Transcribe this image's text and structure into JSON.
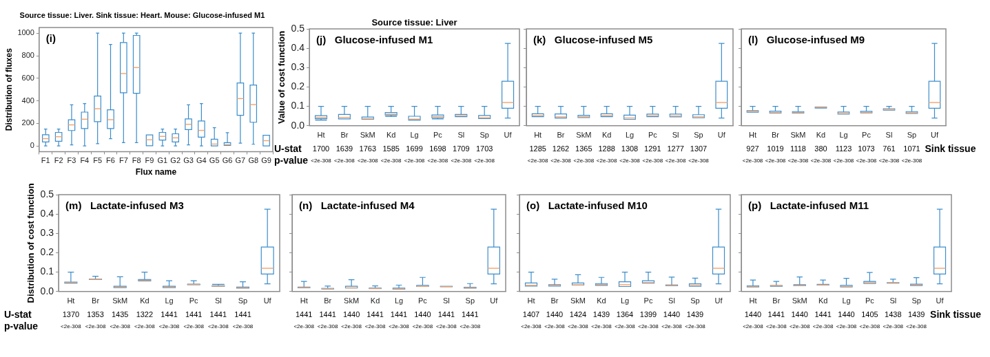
{
  "chart_data": [
    {
      "type": "box",
      "title": "Source tissue: Liver. Sink tissue: Heart. Mouse: Glucose-infused M1",
      "subtitle": "(i)",
      "xlabel": "Flux name",
      "ylabel": "Distribution of fluxes",
      "categories": [
        "F1",
        "F2",
        "F3",
        "F4",
        "F5",
        "F6",
        "F7",
        "F8",
        "F9",
        "G1",
        "G2",
        "G3",
        "G4",
        "G5",
        "G6",
        "G7",
        "G8",
        "G9"
      ],
      "ylim": [
        -50,
        1050
      ],
      "yticks": [
        0,
        200,
        400,
        600,
        800,
        1000
      ],
      "series": [
        {
          "color": "#3c8dcb",
          "boxes": [
            {
              "low": 0,
              "q1": 35,
              "median": 65,
              "q3": 100,
              "high": 150
            },
            {
              "low": 0,
              "q1": 42,
              "median": 82,
              "q3": 120,
              "high": 150
            },
            {
              "low": 10,
              "q1": 137,
              "median": 187,
              "q3": 232,
              "high": 365
            },
            {
              "low": 0,
              "q1": 155,
              "median": 237,
              "q3": 300,
              "high": 375
            },
            {
              "low": 20,
              "q1": 215,
              "median": 330,
              "q3": 443,
              "high": 1000
            },
            {
              "low": 65,
              "q1": 155,
              "median": 233,
              "q3": 320,
              "high": 900
            },
            {
              "low": 30,
              "q1": 472,
              "median": 642,
              "q3": 917,
              "high": 1000
            },
            {
              "low": 30,
              "q1": 467,
              "median": 695,
              "q3": 980,
              "high": 1000
            },
            {
              "low": 0,
              "q1": 2,
              "median": 55,
              "q3": 98,
              "high": 100
            },
            {
              "low": 0,
              "q1": 52,
              "median": 85,
              "q3": 120,
              "high": 150
            },
            {
              "low": 0,
              "q1": 35,
              "median": 72,
              "q3": 108,
              "high": 150
            },
            {
              "low": 10,
              "q1": 145,
              "median": 192,
              "q3": 240,
              "high": 365
            },
            {
              "low": 0,
              "q1": 78,
              "median": 138,
              "q3": 222,
              "high": 375
            },
            {
              "low": 0,
              "q1": 0,
              "median": 17,
              "q3": 60,
              "high": 162
            },
            {
              "low": 0,
              "q1": 5,
              "median": 12,
              "q3": 30,
              "high": 118
            },
            {
              "low": 25,
              "q1": 272,
              "median": 420,
              "q3": 558,
              "high": 1000
            },
            {
              "low": 15,
              "q1": 210,
              "median": 367,
              "q3": 540,
              "high": 1000
            },
            {
              "low": 0,
              "q1": 0,
              "median": 47,
              "q3": 95,
              "high": 97
            }
          ]
        }
      ]
    },
    {
      "type": "box",
      "title": "Source tissue: Liver",
      "subtitle": "(j)   Glucose-infused M1",
      "ylabel": "Value of cost function",
      "categories": [
        "Ht",
        "Br",
        "SkM",
        "Kd",
        "Lg",
        "Pc",
        "Sl",
        "Sp",
        "Uf"
      ],
      "ylim": [
        0,
        0.5
      ],
      "yticks": [
        {
          "value": 0,
          "label": "0.0"
        },
        0.1,
        0.2,
        0.3,
        0.4,
        0.5
      ],
      "series": [
        {
          "color": "#3c8dcb",
          "boxes": [
            {
              "low": 0.029,
              "q1": 0.036,
              "median": 0.042,
              "q3": 0.052,
              "high": 0.1
            },
            {
              "low": 0.033,
              "q1": 0.035,
              "median": 0.043,
              "q3": 0.058,
              "high": 0.1
            },
            {
              "low": 0.03,
              "q1": 0.033,
              "median": 0.036,
              "q3": 0.045,
              "high": 0.1
            },
            {
              "low": 0.048,
              "q1": 0.055,
              "median": 0.059,
              "q3": 0.068,
              "high": 0.1
            },
            {
              "low": 0.024,
              "q1": 0.029,
              "median": 0.034,
              "q3": 0.049,
              "high": 0.1
            },
            {
              "low": 0.035,
              "q1": 0.041,
              "median": 0.047,
              "q3": 0.056,
              "high": 0.1
            },
            {
              "low": 0.045,
              "q1": 0.047,
              "median": 0.051,
              "q3": 0.058,
              "high": 0.1
            },
            {
              "low": 0.033,
              "q1": 0.037,
              "median": 0.041,
              "q3": 0.053,
              "high": 0.1
            },
            {
              "low": 0.04,
              "q1": 0.09,
              "median": 0.12,
              "q3": 0.23,
              "high": 0.425
            }
          ]
        }
      ],
      "annotations": [
        "U-stat",
        "p-value",
        "1700",
        "1639",
        "1763",
        "1585",
        "1699",
        "1698",
        "1709",
        "1703",
        "<2e-308",
        "<2e-308",
        "<2e-308",
        "<2e-308",
        "<2e-308",
        "<2e-308",
        "<2e-308",
        "<2e-308"
      ]
    },
    {
      "type": "box",
      "subtitle": "(k)   Glucose-infused M5",
      "categories": [
        "Ht",
        "Br",
        "SkM",
        "Kd",
        "Lg",
        "Pc",
        "Sl",
        "Sp",
        "Uf"
      ],
      "ylim": [
        0,
        0.5
      ],
      "yticks": [
        0,
        0.1,
        0.2,
        0.3,
        0.4,
        0.5
      ],
      "tick_labels": "x",
      "series": [
        {
          "color": "#3c8dcb",
          "boxes": [
            {
              "low": 0.043,
              "q1": 0.047,
              "median": 0.052,
              "q3": 0.062,
              "high": 0.1
            },
            {
              "low": 0.037,
              "q1": 0.04,
              "median": 0.046,
              "q3": 0.061,
              "high": 0.1
            },
            {
              "low": 0.04,
              "q1": 0.042,
              "median": 0.046,
              "q3": 0.054,
              "high": 0.1
            },
            {
              "low": 0.042,
              "q1": 0.047,
              "median": 0.052,
              "q3": 0.062,
              "high": 0.1
            },
            {
              "low": 0.03,
              "q1": 0.033,
              "median": 0.04,
              "q3": 0.055,
              "high": 0.1
            },
            {
              "low": 0.045,
              "q1": 0.047,
              "median": 0.051,
              "q3": 0.06,
              "high": 0.1
            },
            {
              "low": 0.043,
              "q1": 0.046,
              "median": 0.05,
              "q3": 0.06,
              "high": 0.1
            },
            {
              "low": 0.038,
              "q1": 0.041,
              "median": 0.046,
              "q3": 0.057,
              "high": 0.1
            },
            {
              "low": 0.04,
              "q1": 0.09,
              "median": 0.12,
              "q3": 0.23,
              "high": 0.425
            }
          ]
        }
      ],
      "annotations": [
        "1285",
        "1262",
        "1365",
        "1288",
        "1308",
        "1291",
        "1277",
        "1307",
        "<2e-308",
        "<2e-308",
        "<2e-308",
        "<2e-308",
        "<2e-308",
        "<2e-308",
        "<2e-308",
        "<2e-308"
      ]
    },
    {
      "type": "box",
      "subtitle": "(l)   Glucose-infused M9",
      "categories": [
        "Ht",
        "Br",
        "SkM",
        "Kd",
        "Lg",
        "Pc",
        "Sl",
        "Sp",
        "Uf"
      ],
      "ylim": [
        0,
        0.5
      ],
      "yticks": [
        0,
        0.1,
        0.2,
        0.3,
        0.4,
        0.5
      ],
      "tick_labels": "x",
      "series": [
        {
          "color": "#3c8dcb",
          "boxes": [
            {
              "low": 0.068,
              "q1": 0.07,
              "median": 0.074,
              "q3": 0.078,
              "high": 0.1
            },
            {
              "low": 0.062,
              "q1": 0.065,
              "median": 0.068,
              "q3": 0.075,
              "high": 0.1
            },
            {
              "low": 0.062,
              "q1": 0.065,
              "median": 0.068,
              "q3": 0.073,
              "high": 0.1
            },
            {
              "low": 0.088,
              "q1": 0.091,
              "median": 0.094,
              "q3": 0.097,
              "high": 0.1
            },
            {
              "low": 0.057,
              "q1": 0.06,
              "median": 0.063,
              "q3": 0.071,
              "high": 0.1
            },
            {
              "low": 0.063,
              "q1": 0.066,
              "median": 0.068,
              "q3": 0.074,
              "high": 0.1
            },
            {
              "low": 0.08,
              "q1": 0.08,
              "median": 0.083,
              "q3": 0.088,
              "high": 0.1
            },
            {
              "low": 0.061,
              "q1": 0.064,
              "median": 0.067,
              "q3": 0.073,
              "high": 0.1
            },
            {
              "low": 0.04,
              "q1": 0.09,
              "median": 0.12,
              "q3": 0.23,
              "high": 0.425
            }
          ]
        }
      ],
      "annotations": [
        "Sink tissue",
        "927",
        "1019",
        "1118",
        "380",
        "1123",
        "1073",
        "761",
        "1071",
        "<2e-308",
        "<2e-308",
        "<2e-308",
        "<2e-308",
        "<2e-308",
        "<2e-308",
        "<2e-308",
        "<2e-308"
      ]
    },
    {
      "type": "box",
      "subtitle": "(m)   Lactate-infused M3",
      "ylabel": "Distribution of cost function",
      "categories": [
        "Ht",
        "Br",
        "SkM",
        "Kd",
        "Lg",
        "Pc",
        "Sl",
        "Sp",
        "Uf"
      ],
      "ylim": [
        0,
        0.5
      ],
      "yticks": [
        {
          "value": 0,
          "label": "0.0"
        },
        0.1,
        0.2,
        0.3,
        0.4,
        0.5
      ],
      "series": [
        {
          "color": "#3c8dcb",
          "boxes": [
            {
              "low": 0.04,
              "q1": 0.043,
              "median": 0.047,
              "q3": 0.049,
              "high": 0.1
            },
            {
              "low": 0.062,
              "q1": 0.062,
              "median": 0.063,
              "q3": 0.064,
              "high": 0.079
            },
            {
              "low": 0.018,
              "q1": 0.02,
              "median": 0.022,
              "q3": 0.027,
              "high": 0.076
            },
            {
              "low": 0.05,
              "q1": 0.055,
              "median": 0.058,
              "q3": 0.062,
              "high": 0.1
            },
            {
              "low": 0.018,
              "q1": 0.02,
              "median": 0.022,
              "q3": 0.027,
              "high": 0.056
            },
            {
              "low": 0.033,
              "q1": 0.035,
              "median": 0.037,
              "q3": 0.038,
              "high": 0.056
            },
            {
              "low": 0.026,
              "q1": 0.027,
              "median": 0.028,
              "q3": 0.03,
              "high": 0.037
            },
            {
              "low": 0.015,
              "q1": 0.017,
              "median": 0.019,
              "q3": 0.023,
              "high": 0.05
            },
            {
              "low": 0.04,
              "q1": 0.09,
              "median": 0.12,
              "q3": 0.23,
              "high": 0.425
            }
          ]
        }
      ],
      "annotations": [
        "U-stat",
        "p-value",
        "1370",
        "1353",
        "1435",
        "1322",
        "1441",
        "1441",
        "1441",
        "1441",
        "<2e-308",
        "<2e-308",
        "<2e-308",
        "<2e-308",
        "<2e-308",
        "<2e-308",
        "<2e-308",
        "<2e-308"
      ]
    },
    {
      "type": "box",
      "subtitle": "(n)   Lactate-infused M4",
      "categories": [
        "Ht",
        "Br",
        "SkM",
        "Kd",
        "Lg",
        "Pc",
        "Sl",
        "Sp",
        "Uf"
      ],
      "ylim": [
        0,
        0.5
      ],
      "yticks": [
        0,
        0.1,
        0.2,
        0.3,
        0.4,
        0.5
      ],
      "tick_labels": "x",
      "series": [
        {
          "color": "#3c8dcb",
          "boxes": [
            {
              "low": 0.018,
              "q1": 0.019,
              "median": 0.021,
              "q3": 0.023,
              "high": 0.052
            },
            {
              "low": 0.012,
              "q1": 0.013,
              "median": 0.015,
              "q3": 0.016,
              "high": 0.028
            },
            {
              "low": 0.017,
              "q1": 0.018,
              "median": 0.019,
              "q3": 0.027,
              "high": 0.061
            },
            {
              "low": 0.014,
              "q1": 0.015,
              "median": 0.016,
              "q3": 0.018,
              "high": 0.029
            },
            {
              "low": 0.011,
              "q1": 0.012,
              "median": 0.014,
              "q3": 0.018,
              "high": 0.033
            },
            {
              "low": 0.025,
              "q1": 0.026,
              "median": 0.027,
              "q3": 0.032,
              "high": 0.073
            },
            {
              "low": 0.024,
              "q1": 0.025,
              "median": 0.025,
              "q3": 0.027,
              "high": 0.03
            },
            {
              "low": 0.015,
              "q1": 0.017,
              "median": 0.019,
              "q3": 0.022,
              "high": 0.041
            },
            {
              "low": 0.04,
              "q1": 0.09,
              "median": 0.12,
              "q3": 0.23,
              "high": 0.425
            }
          ]
        }
      ],
      "annotations": [
        "1441",
        "1441",
        "1440",
        "1441",
        "1441",
        "1440",
        "1441",
        "1441",
        "<2e-308",
        "<2e-308",
        "<2e-308",
        "<2e-308",
        "<2e-308",
        "<2e-308",
        "<2e-308",
        "<2e-308"
      ]
    },
    {
      "type": "box",
      "subtitle": "(o)   Lactate-infused M10",
      "categories": [
        "Ht",
        "Br",
        "SkM",
        "Kd",
        "Lg",
        "Pc",
        "Sl",
        "Sp",
        "Uf"
      ],
      "ylim": [
        0,
        0.5
      ],
      "yticks": [
        0,
        0.1,
        0.2,
        0.3,
        0.4,
        0.5
      ],
      "tick_labels": "x",
      "series": [
        {
          "color": "#3c8dcb",
          "boxes": [
            {
              "low": 0.026,
              "q1": 0.028,
              "median": 0.032,
              "q3": 0.044,
              "high": 0.1
            },
            {
              "low": 0.027,
              "q1": 0.028,
              "median": 0.032,
              "q3": 0.035,
              "high": 0.064
            },
            {
              "low": 0.032,
              "q1": 0.033,
              "median": 0.035,
              "q3": 0.044,
              "high": 0.087
            },
            {
              "low": 0.031,
              "q1": 0.032,
              "median": 0.036,
              "q3": 0.041,
              "high": 0.073
            },
            {
              "low": 0.026,
              "q1": 0.026,
              "median": 0.035,
              "q3": 0.05,
              "high": 0.1
            },
            {
              "low": 0.04,
              "q1": 0.043,
              "median": 0.046,
              "q3": 0.056,
              "high": 0.1
            },
            {
              "low": 0.03,
              "q1": 0.03,
              "median": 0.032,
              "q3": 0.034,
              "high": 0.074
            },
            {
              "low": 0.026,
              "q1": 0.027,
              "median": 0.031,
              "q3": 0.04,
              "high": 0.069
            },
            {
              "low": 0.04,
              "q1": 0.09,
              "median": 0.12,
              "q3": 0.23,
              "high": 0.425
            }
          ]
        }
      ],
      "annotations": [
        "1407",
        "1440",
        "1424",
        "1439",
        "1364",
        "1399",
        "1440",
        "1439",
        "<2e-308",
        "<2e-308",
        "<2e-308",
        "<2e-308",
        "<2e-308",
        "<2e-308",
        "<2e-308",
        "<2e-308"
      ]
    },
    {
      "type": "box",
      "subtitle": "(p)   Lactate-infused M11",
      "categories": [
        "Ht",
        "Br",
        "SkM",
        "Kd",
        "Lg",
        "Pc",
        "Sl",
        "Sp",
        "Uf"
      ],
      "ylim": [
        0,
        0.5
      ],
      "yticks": [
        0,
        0.1,
        0.2,
        0.3,
        0.4,
        0.5
      ],
      "tick_labels": "x",
      "series": [
        {
          "color": "#3c8dcb",
          "boxes": [
            {
              "low": 0.023,
              "q1": 0.024,
              "median": 0.026,
              "q3": 0.029,
              "high": 0.059
            },
            {
              "low": 0.026,
              "q1": 0.027,
              "median": 0.03,
              "q3": 0.031,
              "high": 0.052
            },
            {
              "low": 0.029,
              "q1": 0.03,
              "median": 0.031,
              "q3": 0.035,
              "high": 0.075
            },
            {
              "low": 0.032,
              "q1": 0.033,
              "median": 0.034,
              "q3": 0.037,
              "high": 0.059
            },
            {
              "low": 0.023,
              "q1": 0.024,
              "median": 0.026,
              "q3": 0.032,
              "high": 0.068
            },
            {
              "low": 0.04,
              "q1": 0.041,
              "median": 0.046,
              "q3": 0.052,
              "high": 0.098
            },
            {
              "low": 0.042,
              "q1": 0.043,
              "median": 0.045,
              "q3": 0.046,
              "high": 0.064
            },
            {
              "low": 0.03,
              "q1": 0.031,
              "median": 0.033,
              "q3": 0.038,
              "high": 0.072
            },
            {
              "low": 0.04,
              "q1": 0.09,
              "median": 0.12,
              "q3": 0.23,
              "high": 0.425
            }
          ]
        }
      ],
      "annotations": [
        "Sink tissue",
        "1440",
        "1441",
        "1440",
        "1441",
        "1440",
        "1405",
        "1438",
        "1439",
        "<2e-308",
        "<2e-308",
        "<2e-308",
        "<2e-308",
        "<2e-308",
        "<2e-308",
        "<2e-308",
        "<2e-308"
      ]
    }
  ]
}
